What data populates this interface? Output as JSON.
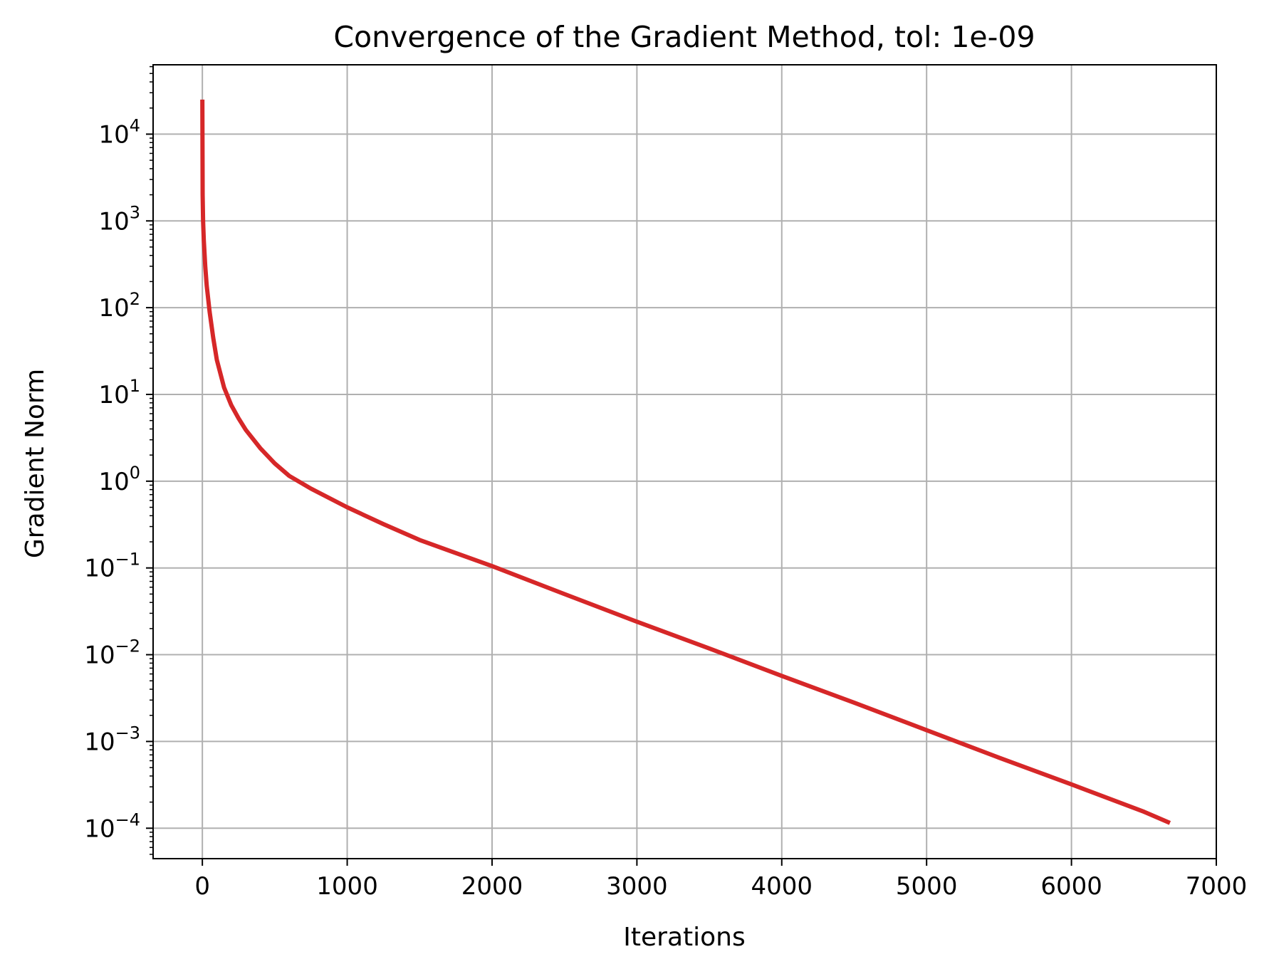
{
  "chart_data": {
    "type": "line",
    "title": "Convergence of the Gradient Method, tol: 1e-09",
    "xlabel": "Iterations",
    "ylabel": "Gradient Norm",
    "xlim": [
      -340,
      7000
    ],
    "ylim": [
      4.46e-05,
      63000
    ],
    "yscale": "log",
    "grid": true,
    "xticks": [
      0,
      1000,
      2000,
      3000,
      4000,
      5000,
      6000,
      7000
    ],
    "xtick_labels": [
      "0",
      "1000",
      "2000",
      "3000",
      "4000",
      "5000",
      "6000",
      "7000"
    ],
    "yticks": [
      {
        "value": 10000,
        "base": "10",
        "exp": "4"
      },
      {
        "value": 1000,
        "base": "10",
        "exp": "3"
      },
      {
        "value": 100,
        "base": "10",
        "exp": "2"
      },
      {
        "value": 10,
        "base": "10",
        "exp": "1"
      },
      {
        "value": 1,
        "base": "10",
        "exp": "0"
      },
      {
        "value": 0.1,
        "base": "10",
        "exp": "−1"
      },
      {
        "value": 0.01,
        "base": "10",
        "exp": "−2"
      },
      {
        "value": 0.001,
        "base": "10",
        "exp": "−3"
      },
      {
        "value": 0.0001,
        "base": "10",
        "exp": "−4"
      }
    ],
    "series": [
      {
        "color": "#d62728",
        "x": [
          0,
          2,
          5,
          10,
          20,
          30,
          50,
          75,
          100,
          150,
          200,
          250,
          300,
          400,
          500,
          600,
          750,
          1000,
          1250,
          1500,
          2000,
          2500,
          3000,
          3500,
          4000,
          4500,
          5000,
          5500,
          6000,
          6500,
          6680
        ],
        "y": [
          25000,
          2000,
          1000,
          600,
          300,
          180,
          90,
          45,
          25,
          12,
          7.5,
          5.3,
          3.9,
          2.4,
          1.6,
          1.15,
          0.82,
          0.5,
          0.32,
          0.21,
          0.105,
          0.05,
          0.024,
          0.0118,
          0.0057,
          0.0028,
          0.00135,
          0.00065,
          0.00032,
          0.000155,
          0.000115
        ]
      }
    ]
  }
}
